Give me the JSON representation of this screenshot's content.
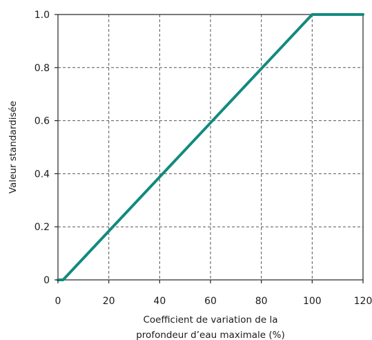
{
  "chart_data": {
    "type": "line",
    "title": "",
    "xlabel_lines": [
      "Coefficient de variation de la",
      "profondeur d’eau maximale (%)"
    ],
    "ylabel": "Valeur standardisée",
    "xlim": [
      0,
      120
    ],
    "ylim": [
      0,
      1.0
    ],
    "x_ticks": [
      0,
      20,
      40,
      60,
      80,
      100,
      120
    ],
    "x_tick_labels": [
      "0",
      "20",
      "40",
      "60",
      "80",
      "100",
      "120"
    ],
    "y_ticks": [
      0,
      0.2,
      0.4,
      0.6,
      0.8,
      1.0
    ],
    "y_tick_labels": [
      "0",
      "0.2",
      "0.4",
      "0.6",
      "0.8",
      "1.0"
    ],
    "grid": true,
    "series": [
      {
        "color": "#138a7e",
        "x": [
          0,
          2,
          100,
          120
        ],
        "y": [
          0,
          0,
          1.0,
          1.0
        ]
      }
    ]
  }
}
